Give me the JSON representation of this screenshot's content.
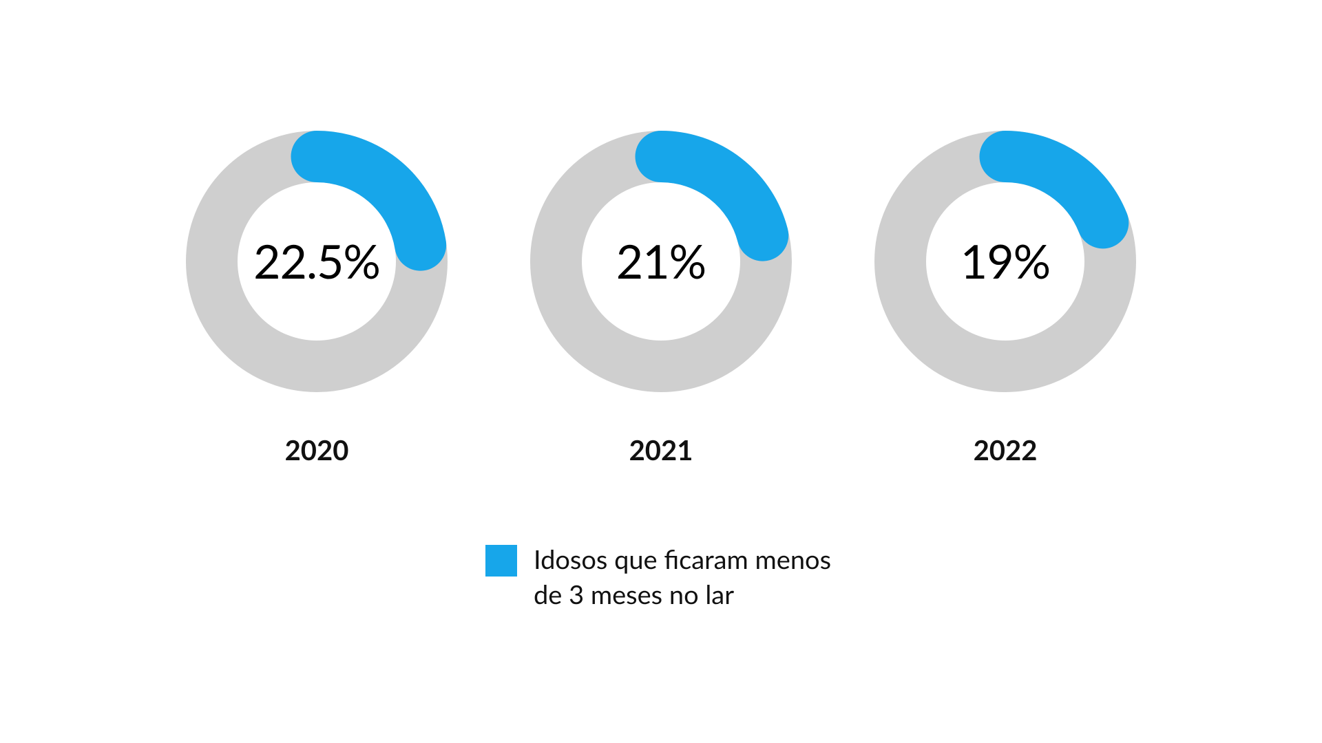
{
  "chart": {
    "type": "donut",
    "background_color": "#ffffff",
    "ring_background_color": "#cfcfcf",
    "arc_color": "#17a6ea",
    "text_color": "#000000",
    "year_label_color": "#111111",
    "outer_radius": 190,
    "inner_radius": 115,
    "stroke_width": 75,
    "start_angle_deg": 0,
    "value_fontsize": 68,
    "year_fontsize": 40,
    "legend_fontsize": 38,
    "items": [
      {
        "year": "2020",
        "value": 22.5,
        "display": "22.5%"
      },
      {
        "year": "2021",
        "value": 21,
        "display": "21%"
      },
      {
        "year": "2022",
        "value": 19,
        "display": "19%"
      }
    ]
  },
  "legend": {
    "swatch_color": "#17a6ea",
    "text": "Idosos que ficaram menos de 3 meses no lar"
  }
}
